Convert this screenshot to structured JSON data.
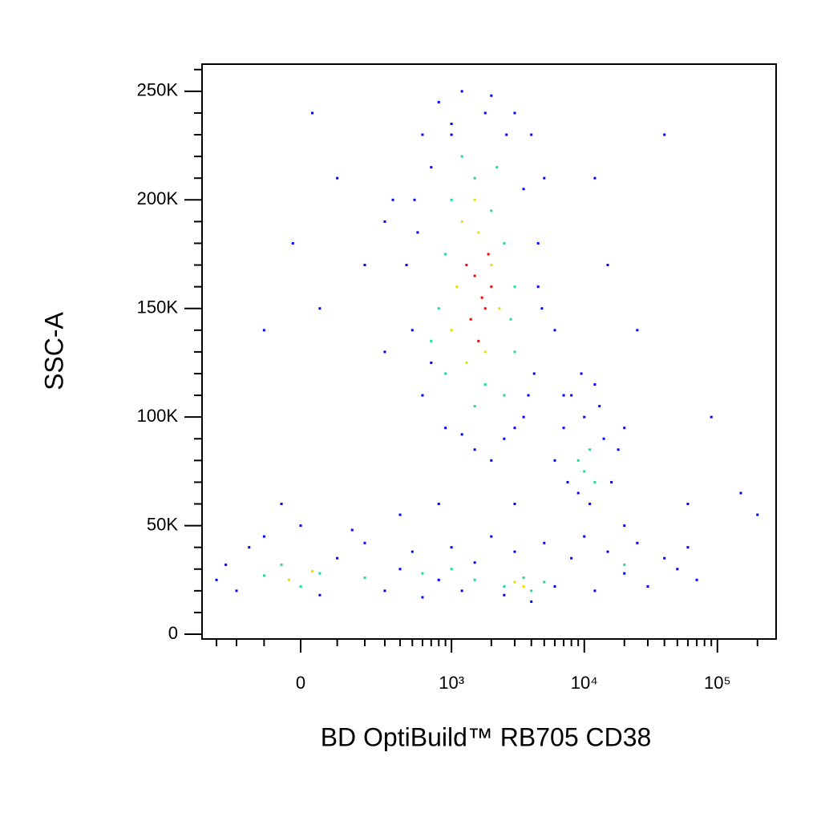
{
  "chart_data": {
    "type": "scatter",
    "xlabel": "BD OptiBuild™ RB705 CD38",
    "ylabel": "SSC-A",
    "xscale": "biexponential",
    "xlim": [
      -394,
      276000
    ],
    "ylim": [
      -2200,
      262500
    ],
    "xticks": [
      0,
      {
        "value": 1000,
        "label": "10³"
      },
      {
        "value": 10000,
        "label": "10⁴"
      },
      {
        "value": 100000,
        "label": "10⁵"
      }
    ],
    "xminorticks": [
      -300,
      -200,
      -100,
      100,
      200,
      300,
      400,
      500,
      600,
      700,
      800,
      900,
      2000,
      3000,
      4000,
      5000,
      6000,
      7000,
      8000,
      9000,
      20000,
      30000,
      40000,
      50000,
      60000,
      70000,
      80000,
      90000,
      200000
    ],
    "yticks": [
      0,
      {
        "value": 50000,
        "label": "50K"
      },
      {
        "value": 100000,
        "label": "100K"
      },
      {
        "value": 150000,
        "label": "150K"
      },
      {
        "value": 200000,
        "label": "200K"
      },
      {
        "value": 250000,
        "label": "250K"
      }
    ],
    "yminorticks": [
      10000,
      20000,
      30000,
      40000,
      60000,
      70000,
      80000,
      90000,
      110000,
      120000,
      130000,
      140000,
      160000,
      170000,
      180000,
      190000,
      210000,
      220000,
      230000,
      240000,
      260000
    ],
    "series": [
      {
        "color": "#0000ff",
        "x": [
          600,
          800,
          1200,
          2000,
          3000,
          4000,
          5000,
          4500,
          4800,
          4200,
          3500,
          2500,
          1500,
          900,
          600,
          500,
          450,
          520,
          700,
          1000,
          1800,
          3500,
          4500,
          3800,
          1200,
          700,
          550,
          2600,
          300,
          350,
          6000,
          7000,
          2000,
          1000,
          3000,
          -300,
          -250,
          -200,
          -150,
          -100,
          0,
          50,
          100,
          200,
          300,
          400,
          500,
          600,
          800,
          1000,
          1200,
          1500,
          2000,
          2500,
          3000,
          4000,
          5000,
          6000,
          8000,
          10000,
          12000,
          15000,
          20000,
          25000,
          30000,
          40000,
          50000,
          60000,
          70000,
          20000,
          400,
          800,
          3000,
          -50,
          150,
          6000,
          7000,
          8000,
          9000,
          10000,
          12000,
          14000,
          16000,
          18000,
          11000,
          7500,
          13000,
          20000,
          9500,
          30,
          100,
          -20,
          200,
          -100,
          50,
          300,
          60000,
          90000,
          150000,
          200000,
          40000,
          15000,
          12000,
          25000
        ],
        "y": [
          230000,
          245000,
          250000,
          248000,
          240000,
          230000,
          210000,
          180000,
          150000,
          120000,
          100000,
          90000,
          85000,
          95000,
          110000,
          140000,
          170000,
          200000,
          215000,
          235000,
          240000,
          205000,
          160000,
          110000,
          92000,
          125000,
          185000,
          230000,
          130000,
          200000,
          140000,
          110000,
          80000,
          230000,
          95000,
          25000,
          32000,
          20000,
          40000,
          45000,
          50000,
          18000,
          35000,
          42000,
          20000,
          30000,
          38000,
          17000,
          25000,
          40000,
          20000,
          33000,
          45000,
          18000,
          38000,
          15000,
          42000,
          22000,
          35000,
          45000,
          20000,
          38000,
          28000,
          42000,
          22000,
          35000,
          30000,
          40000,
          25000,
          50000,
          55000,
          60000,
          60000,
          60000,
          48000,
          80000,
          95000,
          110000,
          65000,
          100000,
          115000,
          90000,
          70000,
          85000,
          60000,
          70000,
          105000,
          95000,
          120000,
          240000,
          210000,
          180000,
          170000,
          140000,
          150000,
          190000,
          60000,
          100000,
          65000,
          55000,
          230000,
          170000,
          210000,
          140000
        ]
      },
      {
        "color": "#20d8a0",
        "x": [
          1000,
          1500,
          2000,
          2500,
          3000,
          3000,
          2500,
          1500,
          900,
          800,
          900,
          1200,
          2200,
          700,
          2800,
          1800,
          -100,
          -50,
          0,
          50,
          200,
          600,
          1500,
          2500,
          3500,
          5000,
          1000,
          4000,
          9000,
          10000,
          11000,
          12000,
          20000
        ],
        "y": [
          200000,
          210000,
          195000,
          180000,
          160000,
          130000,
          110000,
          105000,
          120000,
          150000,
          175000,
          220000,
          215000,
          135000,
          145000,
          115000,
          27000,
          32000,
          22000,
          28000,
          26000,
          28000,
          25000,
          22000,
          26000,
          24000,
          30000,
          20000,
          80000,
          75000,
          85000,
          70000,
          32000
        ]
      },
      {
        "color": "#e8e000",
        "x": [
          1200,
          1600,
          2000,
          1100,
          1300,
          1800,
          2300,
          1000,
          -30,
          30,
          3000,
          3500,
          1500
        ],
        "y": [
          190000,
          185000,
          170000,
          160000,
          125000,
          130000,
          150000,
          140000,
          25000,
          29000,
          24000,
          22000,
          200000
        ]
      },
      {
        "color": "#ff0000",
        "x": [
          1500,
          1700,
          1400,
          1900,
          1600,
          1300,
          2000,
          1800
        ],
        "y": [
          165000,
          155000,
          145000,
          175000,
          135000,
          170000,
          160000,
          150000
        ]
      }
    ]
  }
}
